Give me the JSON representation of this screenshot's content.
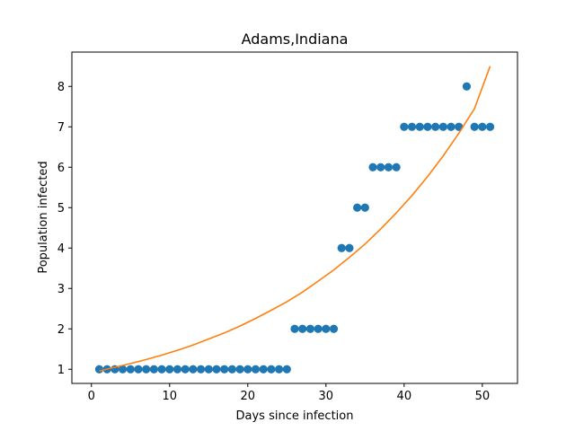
{
  "chart_data": {
    "type": "scatter",
    "title": "Adams,Indiana",
    "xlabel": "Days since infection",
    "ylabel": "Population infected",
    "xlim": [
      -2.5,
      54.5
    ],
    "ylim": [
      0.65,
      8.85
    ],
    "xticks": [
      0,
      10,
      20,
      30,
      40,
      50
    ],
    "yticks": [
      1,
      2,
      3,
      4,
      5,
      6,
      7,
      8
    ],
    "grid": false,
    "legend": "none",
    "series": [
      {
        "kind": "scatter",
        "color": "#1f77b4",
        "x": [
          1,
          2,
          3,
          4,
          5,
          6,
          7,
          8,
          9,
          10,
          11,
          12,
          13,
          14,
          15,
          16,
          17,
          18,
          19,
          20,
          21,
          22,
          23,
          24,
          25,
          26,
          27,
          28,
          29,
          30,
          31,
          32,
          33,
          34,
          35,
          36,
          37,
          38,
          39,
          40,
          41,
          42,
          43,
          44,
          45,
          46,
          47,
          48,
          49,
          50,
          51
        ],
        "y": [
          1,
          1,
          1,
          1,
          1,
          1,
          1,
          1,
          1,
          1,
          1,
          1,
          1,
          1,
          1,
          1,
          1,
          1,
          1,
          1,
          1,
          1,
          1,
          1,
          1,
          2,
          2,
          2,
          2,
          2,
          2,
          4,
          4,
          5,
          5,
          6,
          6,
          6,
          6,
          7,
          7,
          7,
          7,
          7,
          7,
          7,
          7,
          8,
          7,
          7,
          7
        ]
      },
      {
        "kind": "line",
        "color": "#ff7f0e",
        "x": [
          1,
          3,
          5,
          7,
          9,
          11,
          13,
          15,
          17,
          19,
          21,
          23,
          25,
          27,
          29,
          31,
          33,
          35,
          37,
          39,
          41,
          43,
          45,
          47,
          49,
          51
        ],
        "y": [
          0.96,
          1.05,
          1.14,
          1.24,
          1.35,
          1.47,
          1.6,
          1.75,
          1.9,
          2.07,
          2.26,
          2.46,
          2.67,
          2.91,
          3.18,
          3.46,
          3.77,
          4.1,
          4.47,
          4.87,
          5.3,
          5.77,
          6.28,
          6.84,
          7.45,
          8.5
        ]
      }
    ]
  }
}
